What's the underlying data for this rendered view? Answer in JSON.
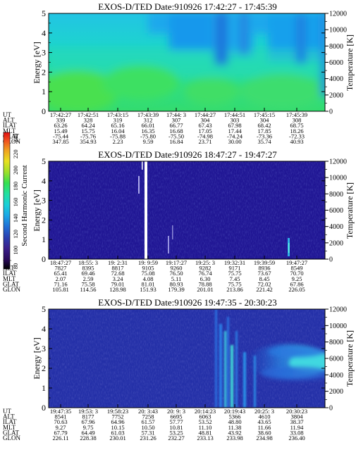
{
  "colorbar": {
    "label": "Second Harmonic Current",
    "ticks": [
      "240",
      "220",
      "200",
      "180",
      "160",
      "140",
      "120",
      "100",
      "80"
    ],
    "colors": [
      "#000000",
      "#2a0a5a",
      "#3a1e8a",
      "#2a3fb0",
      "#1f6fd6",
      "#1aa6e6",
      "#19d0d8",
      "#22e0a0",
      "#35e050",
      "#9ee02a",
      "#e8e020",
      "#f0a020",
      "#f05020",
      "#e01010"
    ]
  },
  "row_labels": [
    "UT",
    "ALT",
    "ILAT",
    "MLT",
    "GLAT",
    "GLON"
  ],
  "chart_data": [
    {
      "type": "heatmap",
      "title": "EXOS-D/TED  Date:910926  17:42:27 - 17:45:39",
      "ylabel": "Energy [eV]",
      "y2label": "Temperature [K]",
      "ylim": [
        0,
        5
      ],
      "yticks": [
        "0",
        "1",
        "2",
        "3",
        "4",
        "5"
      ],
      "y2lim": [
        0,
        12000
      ],
      "y2ticks": [
        "0",
        "2000",
        "4000",
        "6000",
        "8000",
        "10000",
        "12000"
      ],
      "columns": [
        {
          "UT": "17:42:27",
          "ALT": "339",
          "ILAT": "63.26",
          "MLT": "15.49",
          "GLAT": "-75.44",
          "GLON": "347.85"
        },
        {
          "UT": "17:42:51",
          "ALT": "328",
          "ILAT": "64.24",
          "MLT": "15.75",
          "GLAT": "-75.76",
          "GLON": "354.93"
        },
        {
          "UT": "17:43:15",
          "ALT": "319",
          "ILAT": "65.16",
          "MLT": "16.04",
          "GLAT": "-75.88",
          "GLON": "2.23"
        },
        {
          "UT": "17:43:39",
          "ALT": "312",
          "ILAT": "66.01",
          "MLT": "16.35",
          "GLAT": "-75.80",
          "GLON": "9.59"
        },
        {
          "UT": "17:44: 3",
          "ALT": "307",
          "ILAT": "66.77",
          "MLT": "16.68",
          "GLAT": "-75.50",
          "GLON": "16.84"
        },
        {
          "UT": "17:44:27",
          "ALT": "304",
          "ILAT": "67.43",
          "MLT": "17.05",
          "GLAT": "-74.98",
          "GLON": "23.71"
        },
        {
          "UT": "17:44:51",
          "ALT": "303",
          "ILAT": "67.98",
          "MLT": "17.44",
          "GLAT": "-74.24",
          "GLON": "30.00"
        },
        {
          "UT": "17:45:15",
          "ALT": "304",
          "ILAT": "68.42",
          "MLT": "17.85",
          "GLAT": "-73.36",
          "GLON": "35.74"
        },
        {
          "UT": "17:45:39",
          "ALT": "308",
          "ILAT": "68.75",
          "MLT": "18.26",
          "GLAT": "-72.33",
          "GLON": "40.93"
        }
      ]
    },
    {
      "type": "heatmap",
      "title": "EXOS-D/TED  Date:910926  18:47:27 - 19:47:27",
      "ylabel": "Energy [eV]",
      "y2label": "Temperature [K]",
      "ylim": [
        0,
        5
      ],
      "yticks": [
        "0",
        "1",
        "2",
        "3",
        "4",
        "5"
      ],
      "y2lim": [
        0,
        12000
      ],
      "y2ticks": [
        "0",
        "2000",
        "4000",
        "6000",
        "8000",
        "10000",
        "12000"
      ],
      "columns": [
        {
          "UT": "18:47:27",
          "ALT": "7827",
          "ILAT": "65.41",
          "MLT": "2.07",
          "GLAT": "71.16",
          "GLON": "105.81"
        },
        {
          "UT": "18:55: 3",
          "ALT": "8395",
          "ILAT": "69.46",
          "MLT": "2.59",
          "GLAT": "75.58",
          "GLON": "114.56"
        },
        {
          "UT": "19: 2:31",
          "ALT": "8817",
          "ILAT": "72.68",
          "MLT": "3.24",
          "GLAT": "79.01",
          "GLON": "128.98"
        },
        {
          "UT": "19: 9:59",
          "ALT": "9105",
          "ILAT": "75.08",
          "MLT": "4.08",
          "GLAT": "81.01",
          "GLON": "151.93"
        },
        {
          "UT": "19:17:27",
          "ALT": "9260",
          "ILAT": "76.50",
          "MLT": "5.11",
          "GLAT": "80.93",
          "GLON": "179.39"
        },
        {
          "UT": "19:25: 3",
          "ALT": "9282",
          "ILAT": "76.74",
          "MLT": "6.30",
          "GLAT": "78.88",
          "GLON": "201.01"
        },
        {
          "UT": "19:32:31",
          "ALT": "9171",
          "ILAT": "75.75",
          "MLT": "7.45",
          "GLAT": "75.75",
          "GLON": "213.86"
        },
        {
          "UT": "19:39:59",
          "ALT": "8936",
          "ILAT": "73.67",
          "MLT": "8.45",
          "GLAT": "72.02",
          "GLON": "221.42"
        },
        {
          "UT": "19:47:27",
          "ALT": "8549",
          "ILAT": "70.70",
          "MLT": "9.25",
          "GLAT": "67.86",
          "GLON": "226.05"
        }
      ]
    },
    {
      "type": "heatmap",
      "title": "EXOS-D/TED  Date:910926  19:47:35 - 20:30:23",
      "ylabel": "Energy [eV]",
      "y2label": "Temperature [K]",
      "ylim": [
        0,
        5
      ],
      "yticks": [
        "0",
        "1",
        "2",
        "3",
        "4",
        "5"
      ],
      "y2lim": [
        0,
        12000
      ],
      "y2ticks": [
        "0",
        "2000",
        "4000",
        "6000",
        "8000",
        "10000",
        "12000"
      ],
      "columns": [
        {
          "UT": "19:47:35",
          "ALT": "8541",
          "ILAT": "70.63",
          "MLT": "9.27",
          "GLAT": "67.79",
          "GLON": "226.11"
        },
        {
          "UT": "19:53: 3",
          "ALT": "8177",
          "ILAT": "67.96",
          "MLT": "9.75",
          "GLAT": "64.49",
          "GLON": "228.38"
        },
        {
          "UT": "19:58:23",
          "ALT": "7752",
          "ILAT": "64.96",
          "MLT": "10.15",
          "GLAT": "61.03",
          "GLON": "230.01"
        },
        {
          "UT": "20: 3:43",
          "ALT": "7258",
          "ILAT": "61.57",
          "MLT": "10.50",
          "GLAT": "57.31",
          "GLON": "231.26"
        },
        {
          "UT": "20: 9: 3",
          "ALT": "6695",
          "ILAT": "57.77",
          "MLT": "10.81",
          "GLAT": "53.25",
          "GLON": "232.27"
        },
        {
          "UT": "20:14:23",
          "ALT": "6063",
          "ILAT": "53.52",
          "MLT": "11.10",
          "GLAT": "48.81",
          "GLON": "233.13"
        },
        {
          "UT": "20:19:43",
          "ALT": "5366",
          "ILAT": "48.80",
          "MLT": "11.38",
          "GLAT": "43.92",
          "GLON": "233.98"
        },
        {
          "UT": "20:25: 3",
          "ALT": "4610",
          "ILAT": "43.65",
          "MLT": "11.66",
          "GLAT": "38.60",
          "GLON": "234.98"
        },
        {
          "UT": "20:30:23",
          "ALT": "3804",
          "ILAT": "38.37",
          "MLT": "11.94",
          "GLAT": "33.08",
          "GLON": "236.40"
        }
      ]
    }
  ]
}
